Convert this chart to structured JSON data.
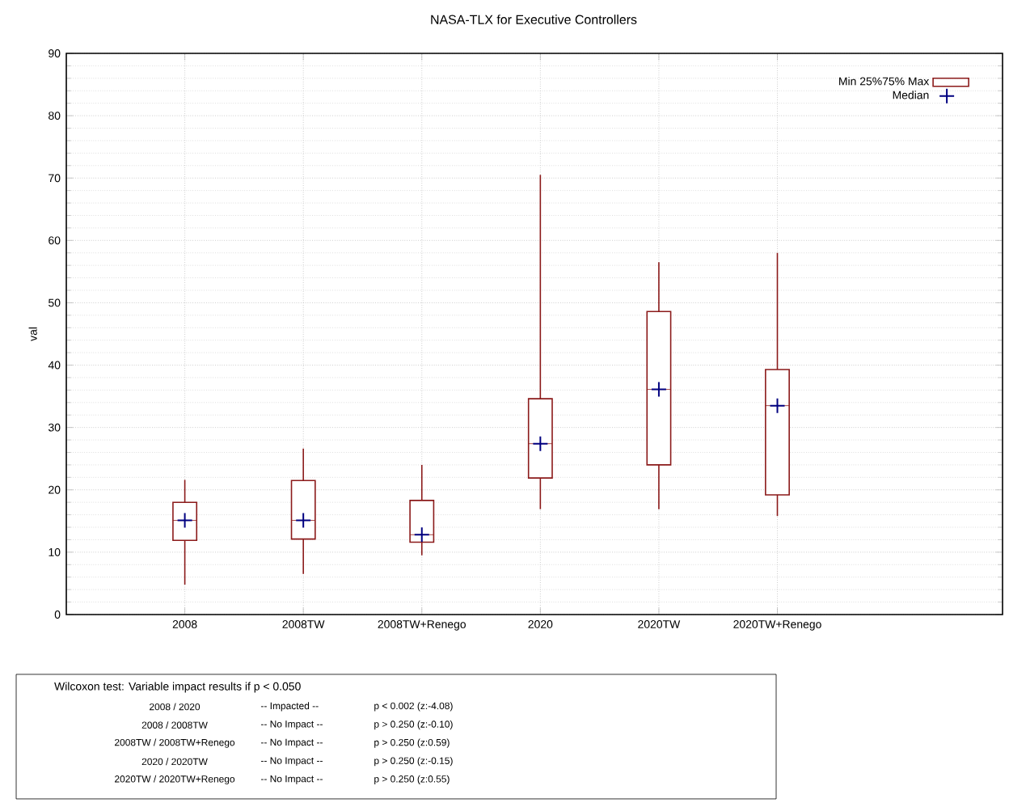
{
  "chart_data": {
    "type": "box",
    "title": "NASA-TLX for Executive Controllers",
    "ylabel": "val",
    "categories": [
      "2008",
      "2008TW",
      "2008TW+Renego",
      "2020",
      "2020TW",
      "2020TW+Renego"
    ],
    "ylim": [
      0,
      90
    ],
    "yticks": [
      0,
      10,
      20,
      30,
      40,
      50,
      60,
      70,
      80,
      90
    ],
    "grid": true,
    "legend": "top right",
    "series": [
      {
        "name": "Min 25%75% Max",
        "color": "#8b1a1a",
        "boxes": [
          {
            "low": 4.8,
            "q1": 11.9,
            "median": 15.1,
            "q3": 18.0,
            "high": 21.6
          },
          {
            "low": 6.5,
            "q1": 12.1,
            "median": 15.1,
            "q3": 21.5,
            "high": 26.6
          },
          {
            "low": 9.5,
            "q1": 11.6,
            "median": 12.8,
            "q3": 18.3,
            "high": 24.0
          },
          {
            "low": 16.9,
            "q1": 21.9,
            "median": 27.4,
            "q3": 34.6,
            "high": 70.5
          },
          {
            "low": 16.9,
            "q1": 24.0,
            "median": 36.1,
            "q3": 48.6,
            "high": 56.5
          },
          {
            "low": 15.8,
            "q1": 19.2,
            "median": 33.5,
            "q3": 39.3,
            "high": 58.0
          }
        ]
      },
      {
        "name": "Median",
        "type": "scatter",
        "color": "#000080",
        "marker": "cross",
        "values": [
          15.1,
          15.1,
          12.8,
          27.4,
          36.1,
          33.5
        ]
      }
    ],
    "annotations": [
      "Wilcoxon test: Variable impact results if p < 0.050",
      "2008 / 2020",
      "-- Impacted --",
      "p < 0.002  (z:-4.08)",
      "2008 / 2008TW",
      "-- No Impact --",
      "p > 0.250 (z:-0.10)",
      "2008TW / 2008TW+Renego",
      "-- No Impact --",
      "p > 0.250 (z:0.59)",
      "2020 / 2020TW",
      "-- No Impact --",
      "p > 0.250 (z:-0.15)",
      "2020TW / 2020TW+Renego",
      "-- No Impact --",
      "p > 0.250 (z:0.55)"
    ]
  }
}
